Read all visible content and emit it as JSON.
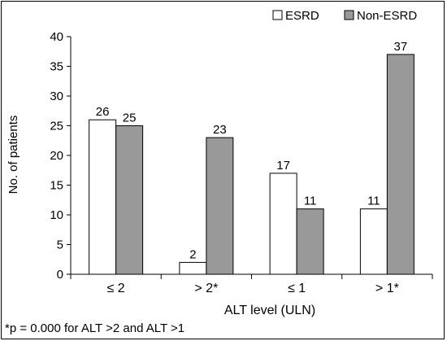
{
  "chart_data": {
    "type": "bar",
    "categories": [
      "≤ 2",
      "> 2*",
      "≤ 1",
      "> 1*"
    ],
    "series": [
      {
        "name": "ESRD",
        "values": [
          26,
          2,
          17,
          11
        ],
        "color": "#ffffff"
      },
      {
        "name": "Non-ESRD",
        "values": [
          25,
          23,
          11,
          37
        ],
        "color": "#999999"
      }
    ],
    "data_labels": [
      [
        "26",
        "2",
        "17",
        "11"
      ],
      [
        "25",
        "23",
        "11",
        "37"
      ]
    ],
    "xlabel": "ALT level (ULN)",
    "ylabel": "No. of patients",
    "ylim": [
      0,
      40
    ],
    "yticks": [
      0,
      5,
      10,
      15,
      20,
      25,
      30,
      35,
      40
    ],
    "grid": false,
    "legend_position": "top-right",
    "footnote": "*p = 0.000 for ALT >2 and ALT >1"
  }
}
